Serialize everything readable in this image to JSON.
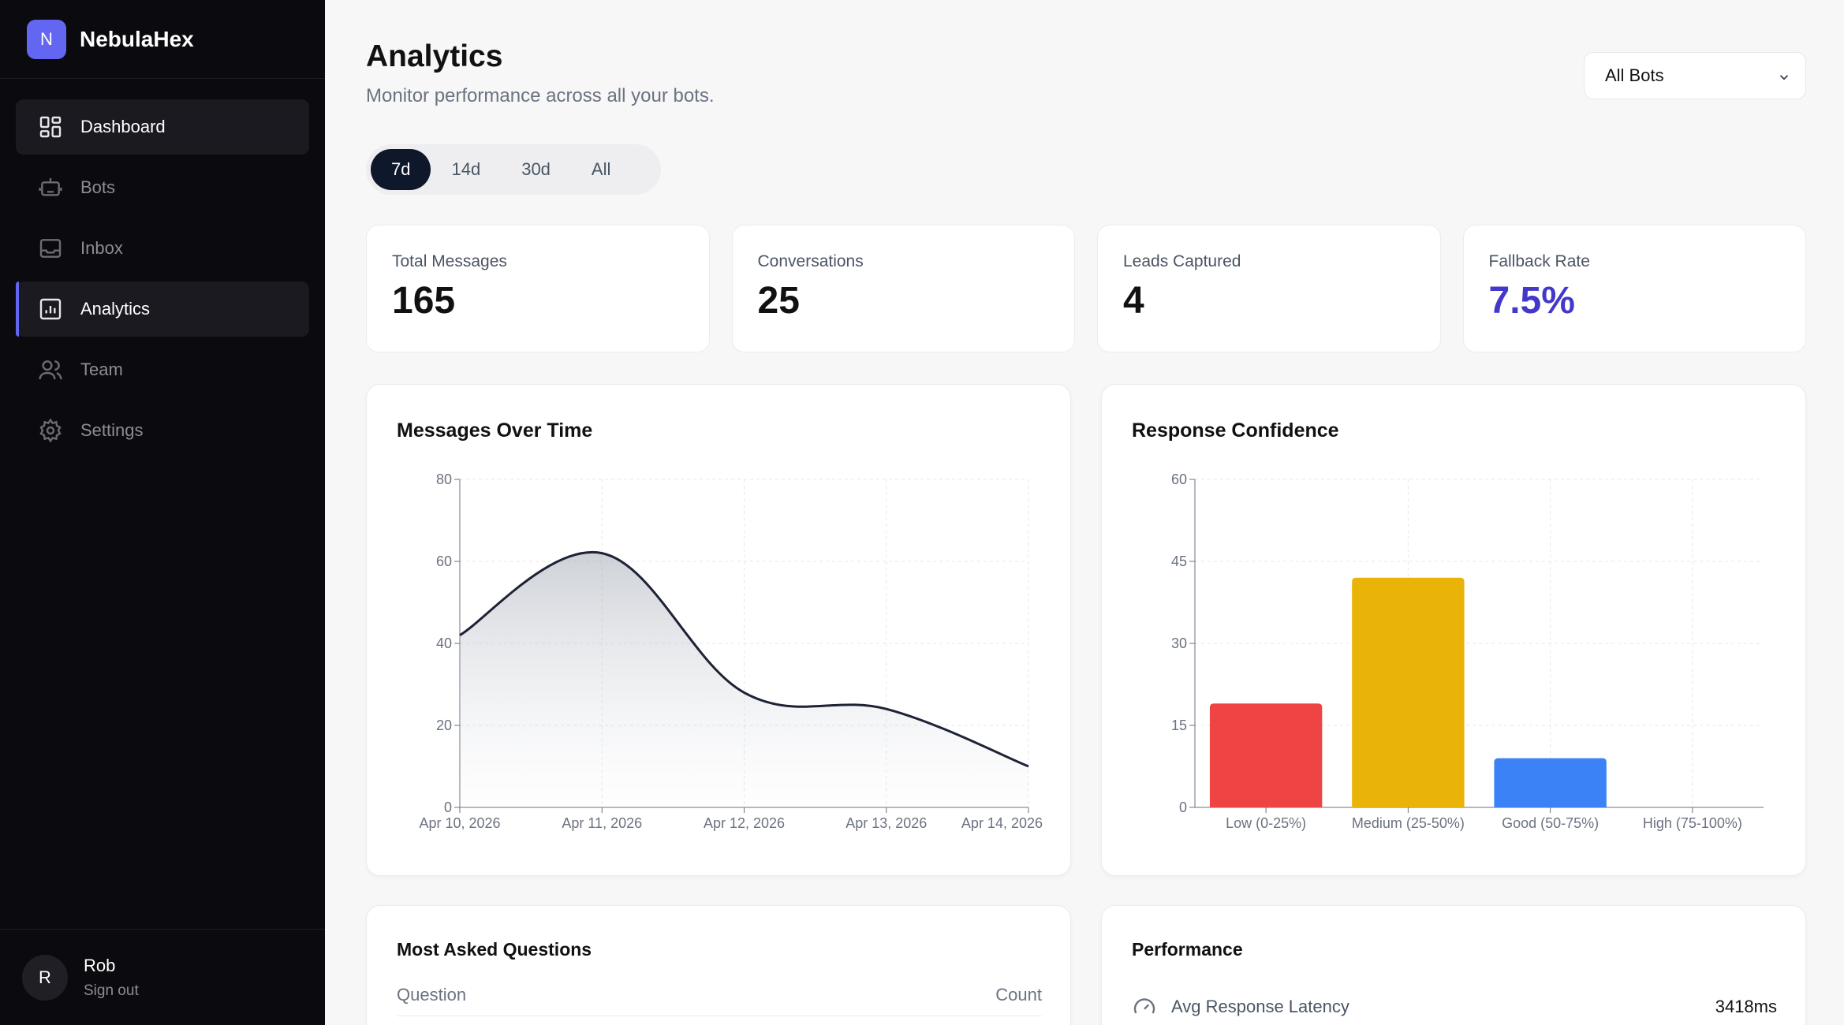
{
  "brand": {
    "logo_letter": "N",
    "name": "NebulaHex"
  },
  "nav": [
    {
      "label": "Dashboard",
      "icon": "dashboard-icon"
    },
    {
      "label": "Bots",
      "icon": "bot-icon"
    },
    {
      "label": "Inbox",
      "icon": "inbox-icon"
    },
    {
      "label": "Analytics",
      "icon": "analytics-icon"
    },
    {
      "label": "Team",
      "icon": "team-icon"
    },
    {
      "label": "Settings",
      "icon": "gear-icon"
    }
  ],
  "user": {
    "initial": "R",
    "name": "Rob",
    "signout": "Sign out"
  },
  "header": {
    "title": "Analytics",
    "subtitle": "Monitor performance across all your bots."
  },
  "bot_filter": {
    "selected": "All Bots"
  },
  "ranges": {
    "items": [
      "7d",
      "14d",
      "30d",
      "All"
    ],
    "selected": "7d"
  },
  "stats": [
    {
      "label": "Total Messages",
      "value": "165"
    },
    {
      "label": "Conversations",
      "value": "25"
    },
    {
      "label": "Leads Captured",
      "value": "4"
    },
    {
      "label": "Fallback Rate",
      "value": "7.5%"
    }
  ],
  "colors": {
    "accent": "#4338ca",
    "brand": "#6366f1",
    "line": "#1e2235",
    "low": "#ef4444",
    "medium": "#eab308",
    "good": "#3b82f6"
  },
  "chart_data": [
    {
      "type": "area",
      "title": "Messages Over Time",
      "x": [
        "Apr 10, 2026",
        "Apr 11, 2026",
        "Apr 12, 2026",
        "Apr 13, 2026",
        "Apr 14, 2026"
      ],
      "values": [
        42,
        62,
        28,
        24,
        10
      ],
      "ylim": [
        0,
        80
      ],
      "yticks": [
        0,
        20,
        40,
        60,
        80
      ],
      "grid": true
    },
    {
      "type": "bar",
      "title": "Response Confidence",
      "categories": [
        "Low (0-25%)",
        "Medium (25-50%)",
        "Good (50-75%)",
        "High (75-100%)"
      ],
      "values": [
        19,
        42,
        9,
        0
      ],
      "ylim": [
        0,
        60
      ],
      "yticks": [
        0,
        15,
        30,
        45,
        60
      ],
      "grid": true
    }
  ],
  "questions": {
    "title": "Most Asked Questions",
    "col_question": "Question",
    "col_count": "Count"
  },
  "performance": {
    "title": "Performance",
    "rows": [
      {
        "label": "Avg Response Latency",
        "value": "3418ms",
        "icon": "gauge-icon"
      }
    ]
  }
}
